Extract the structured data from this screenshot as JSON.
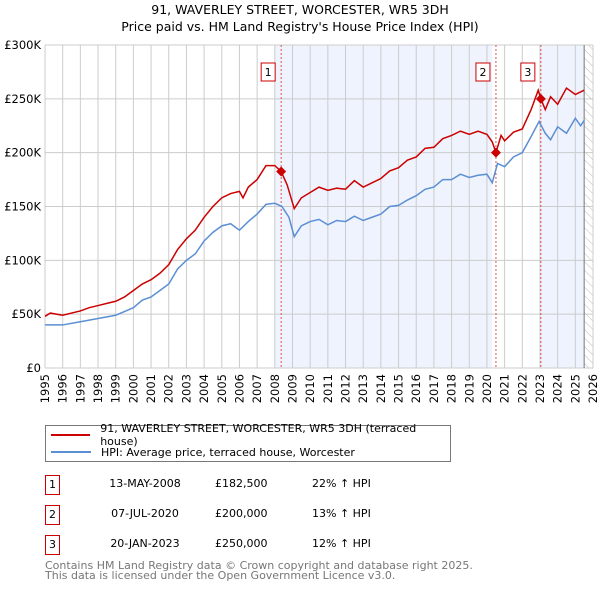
{
  "title_line1": "91, WAVERLEY STREET, WORCESTER, WR5 3DH",
  "title_line2": "Price paid vs. HM Land Registry's House Price Index (HPI)",
  "colors": {
    "property": "#cc0000",
    "hpi": "#5b8fd4",
    "shade": "#eef3fd"
  },
  "chart_data": {
    "type": "line",
    "ylim": [
      0,
      300000
    ],
    "xlim": [
      1995,
      2026
    ],
    "y_ticks": [
      {
        "v": 0,
        "label": "£0"
      },
      {
        "v": 50000,
        "label": "£50K"
      },
      {
        "v": 100000,
        "label": "£100K"
      },
      {
        "v": 150000,
        "label": "£150K"
      },
      {
        "v": 200000,
        "label": "£200K"
      },
      {
        "v": 250000,
        "label": "£250K"
      },
      {
        "v": 300000,
        "label": "£300K"
      }
    ],
    "x_ticks": [
      "1995",
      "1996",
      "1997",
      "1998",
      "1999",
      "2000",
      "2001",
      "2002",
      "2003",
      "2004",
      "2005",
      "2006",
      "2007",
      "2008",
      "2009",
      "2010",
      "2011",
      "2012",
      "2013",
      "2014",
      "2015",
      "2016",
      "2017",
      "2018",
      "2019",
      "2020",
      "2021",
      "2022",
      "2023",
      "2024",
      "2025",
      "2026"
    ],
    "data_end": 2025.5,
    "series": [
      {
        "name": "91, WAVERLEY STREET, WORCESTER, WR5 3DH (terraced house)",
        "color": "#cc0000",
        "x": [
          1995,
          1995.3,
          1996,
          1997,
          1997.5,
          1998,
          1998.5,
          1999,
          1999.5,
          2000,
          2000.5,
          2001,
          2001.5,
          2002,
          2002.5,
          2003,
          2003.5,
          2004,
          2004.5,
          2005,
          2005.5,
          2006,
          2006.2,
          2006.5,
          2007,
          2007.5,
          2008,
          2008.36,
          2008.7,
          2009.1,
          2009.5,
          2010,
          2010.5,
          2011,
          2011.5,
          2012,
          2012.5,
          2013,
          2013.5,
          2014,
          2014.5,
          2015,
          2015.5,
          2016,
          2016.5,
          2017,
          2017.5,
          2018,
          2018.5,
          2019,
          2019.5,
          2020,
          2020.3,
          2020.51,
          2020.8,
          2021,
          2021.5,
          2022,
          2022.5,
          2022.9,
          2023.05,
          2023.3,
          2023.6,
          2024,
          2024.5,
          2025,
          2025.5
        ],
        "y": [
          48000,
          51000,
          49000,
          53000,
          56000,
          58000,
          60000,
          62000,
          66000,
          72000,
          78000,
          82000,
          88000,
          96000,
          110000,
          120000,
          128000,
          140000,
          150000,
          158000,
          162000,
          164000,
          158000,
          168000,
          175000,
          188000,
          188000,
          182500,
          170000,
          148000,
          158000,
          163000,
          168000,
          165000,
          167000,
          166000,
          174000,
          168000,
          172000,
          176000,
          183000,
          186000,
          193000,
          196000,
          204000,
          205000,
          213000,
          216000,
          220000,
          217000,
          220000,
          217000,
          210000,
          200000,
          216000,
          211000,
          219000,
          222000,
          240000,
          258000,
          250000,
          240000,
          252000,
          245000,
          260000,
          254000,
          258000
        ]
      },
      {
        "name": "HPI: Average price, terraced house, Worcester",
        "color": "#5b8fd4",
        "x": [
          1995,
          1996,
          1997,
          1998,
          1999,
          2000,
          2000.5,
          2001,
          2001.5,
          2002,
          2002.5,
          2003,
          2003.5,
          2004,
          2004.5,
          2005,
          2005.5,
          2006,
          2006.5,
          2007,
          2007.5,
          2008,
          2008.4,
          2008.8,
          2009.1,
          2009.5,
          2010,
          2010.5,
          2011,
          2011.5,
          2012,
          2012.5,
          2013,
          2013.5,
          2014,
          2014.5,
          2015,
          2015.5,
          2016,
          2016.5,
          2017,
          2017.5,
          2018,
          2018.5,
          2019,
          2019.5,
          2020,
          2020.3,
          2020.6,
          2021,
          2021.5,
          2022,
          2022.5,
          2022.95,
          2023.3,
          2023.6,
          2024,
          2024.5,
          2025,
          2025.3,
          2025.5
        ],
        "y": [
          40000,
          40000,
          43000,
          46000,
          49000,
          56000,
          63000,
          66000,
          72000,
          78000,
          92000,
          100000,
          106000,
          118000,
          126000,
          132000,
          134000,
          128000,
          136000,
          143000,
          152000,
          153000,
          150000,
          140000,
          122000,
          132000,
          136000,
          138000,
          133000,
          137000,
          136000,
          141000,
          137000,
          140000,
          143000,
          150000,
          151000,
          156000,
          160000,
          166000,
          168000,
          175000,
          175000,
          180000,
          177000,
          179000,
          180000,
          172000,
          190000,
          187000,
          196000,
          200000,
          215000,
          229000,
          218000,
          212000,
          224000,
          218000,
          232000,
          225000,
          230000
        ]
      }
    ],
    "sales": [
      {
        "label": "1",
        "x": 2008.36,
        "price": 182500
      },
      {
        "label": "2",
        "x": 2020.51,
        "price": 200000
      },
      {
        "label": "3",
        "x": 2023.05,
        "price": 250000
      }
    ]
  },
  "legend": {
    "property": "91, WAVERLEY STREET, WORCESTER, WR5 3DH (terraced house)",
    "hpi": "HPI: Average price, terraced house, Worcester"
  },
  "table": [
    {
      "num": "1",
      "date": "13-MAY-2008",
      "price": "£182,500",
      "hpi": "22% ↑ HPI"
    },
    {
      "num": "2",
      "date": "07-JUL-2020",
      "price": "£200,000",
      "hpi": "13% ↑ HPI"
    },
    {
      "num": "3",
      "date": "20-JAN-2023",
      "price": "£250,000",
      "hpi": "12% ↑ HPI"
    }
  ],
  "footer": {
    "line1": "Contains HM Land Registry data © Crown copyright and database right 2025.",
    "line2": "This data is licensed under the Open Government Licence v3.0."
  }
}
